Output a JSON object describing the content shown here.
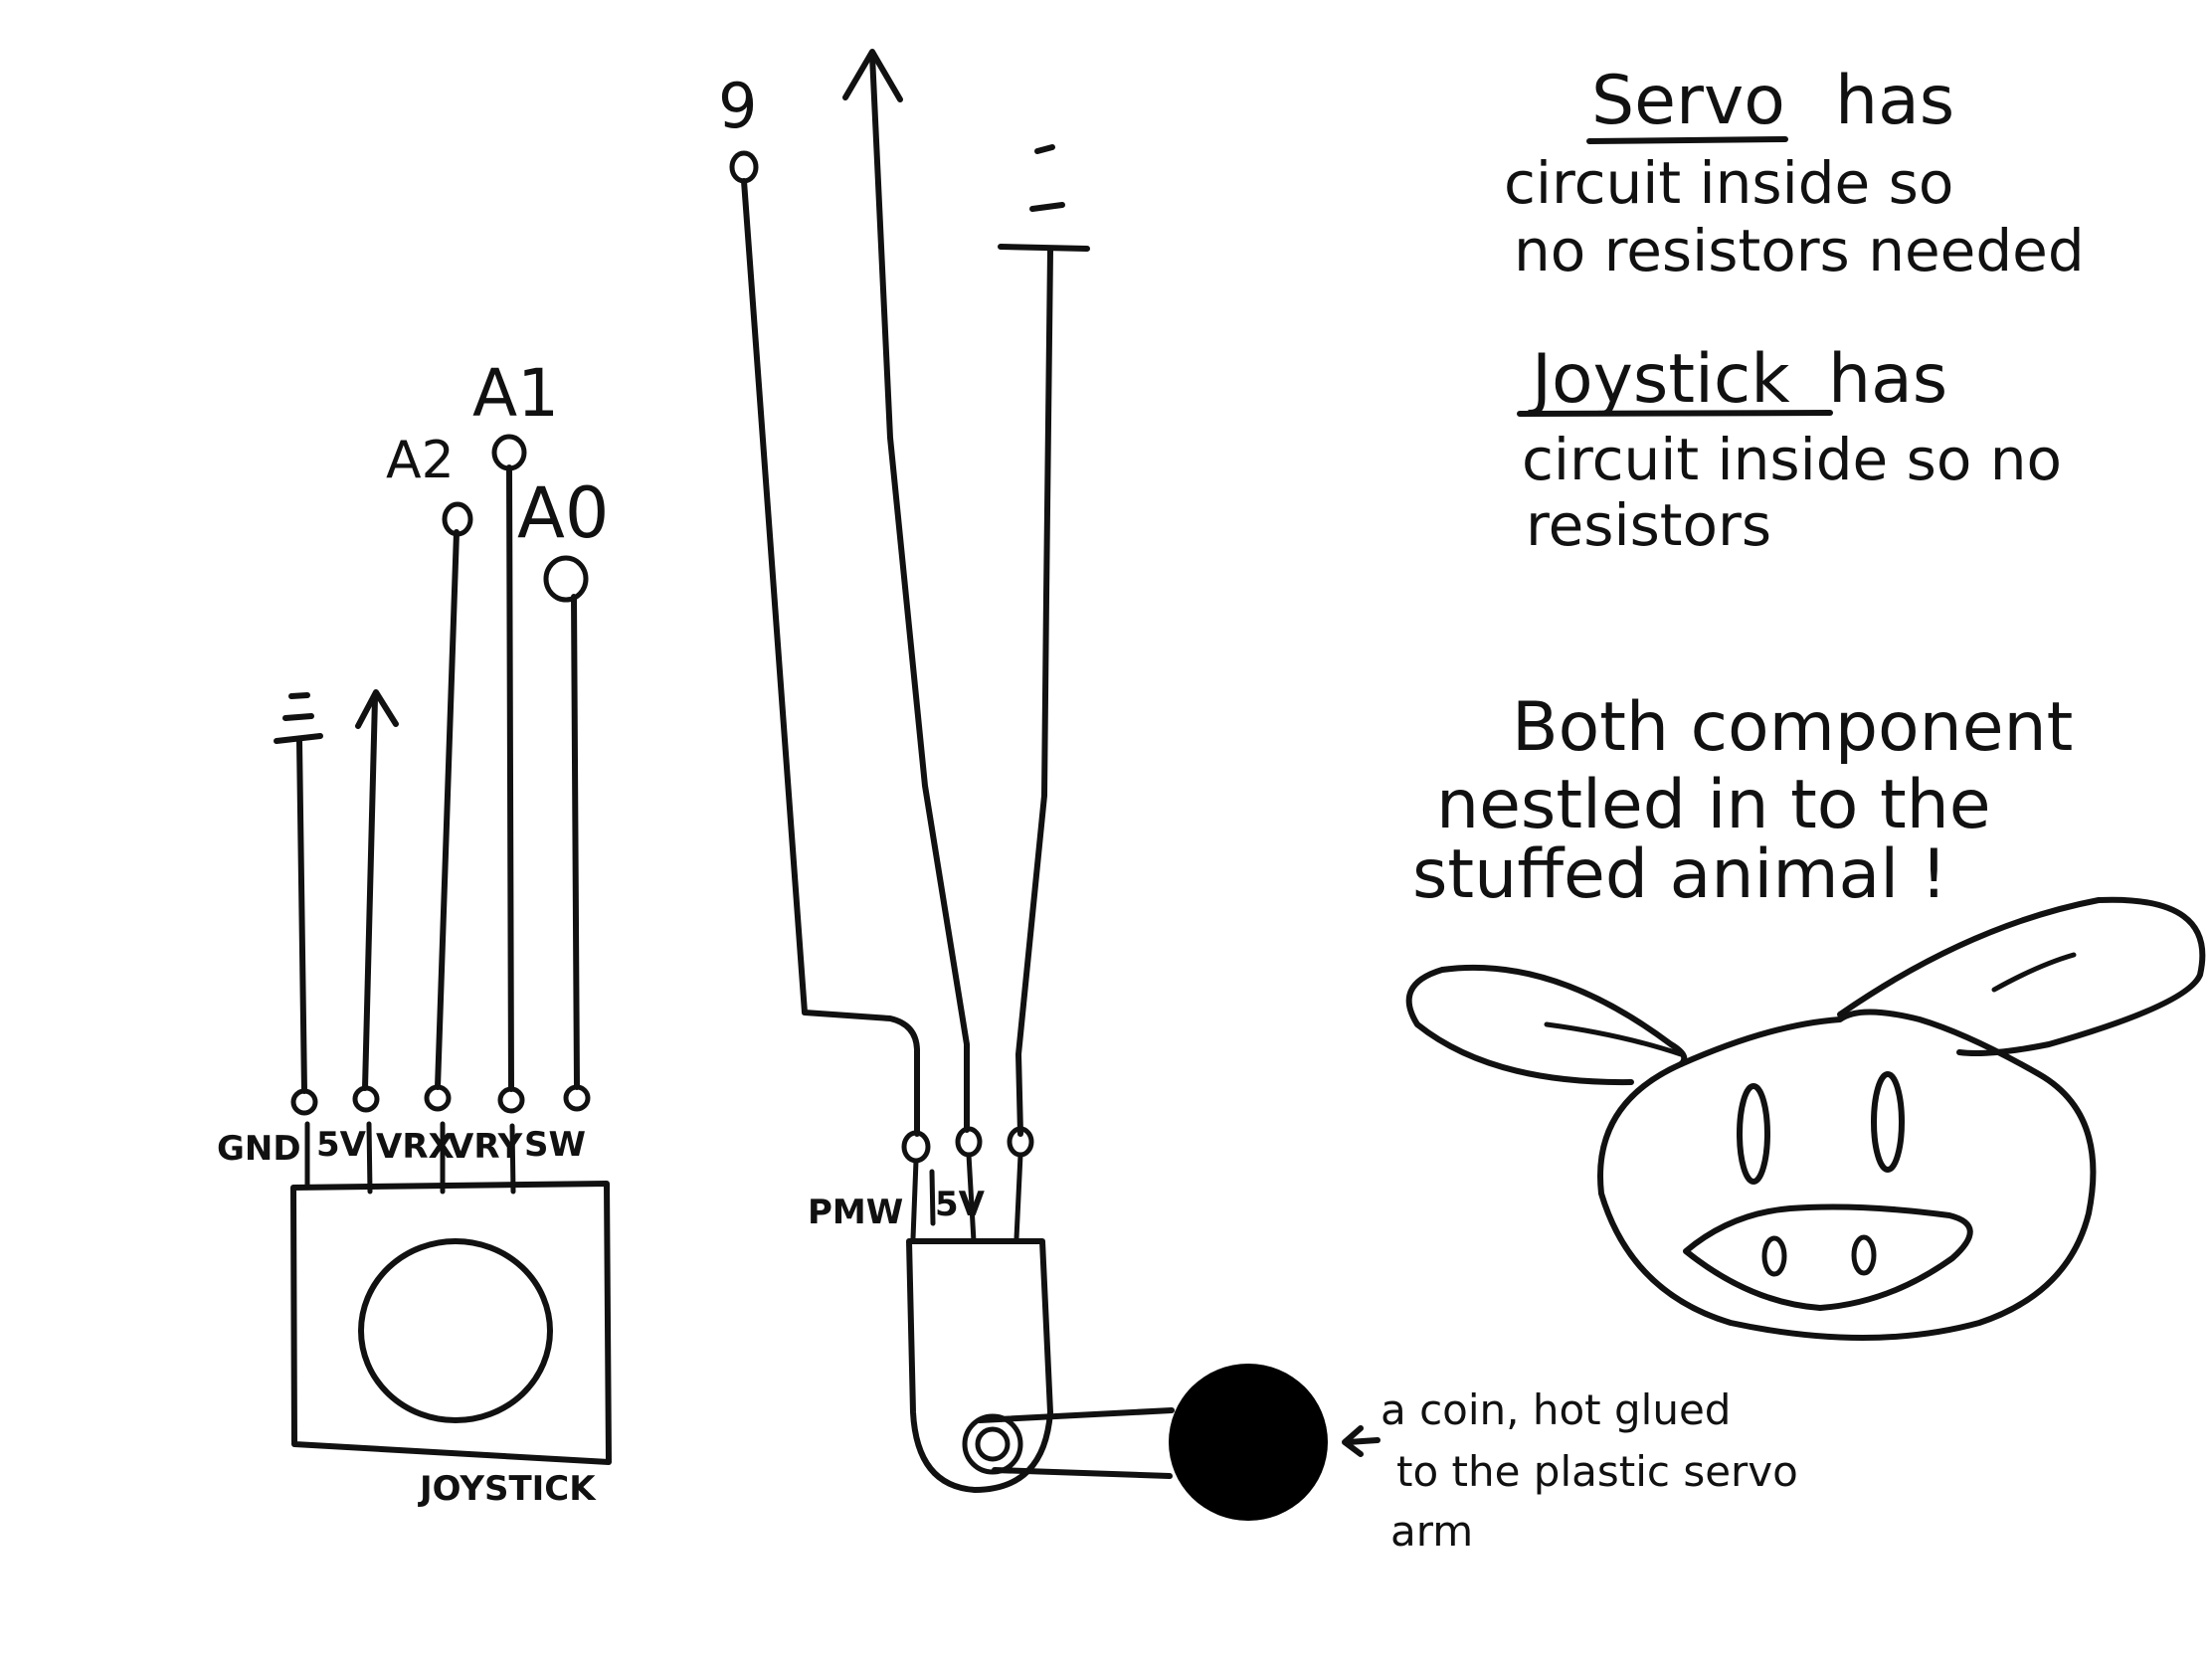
{
  "joystick": {
    "title": "JOYSTICK",
    "pins": [
      "GND",
      "5V",
      "VRX",
      "VRY",
      "SW"
    ],
    "connections": [
      "A2",
      "A1",
      "A0"
    ]
  },
  "servo": {
    "pin_labels": [
      "PMW",
      "5V"
    ],
    "pin_9": "9"
  },
  "notes": {
    "servo_word": "Servo",
    "servo_rest_line1": "has",
    "servo_line2": "circuit inside so",
    "servo_line3": "no resistors needed",
    "joystick_word": "Joystick",
    "joystick_rest_line1": "has",
    "joystick_line2": "circuit inside so no",
    "joystick_line3": "resistors",
    "both_line1": "Both component",
    "both_line2": "nestled in to the",
    "both_line3": "stuffed animal !"
  },
  "coin_note": {
    "line1": "a coin, hot glued",
    "line2": "to the plastic servo",
    "line3": "arm"
  }
}
